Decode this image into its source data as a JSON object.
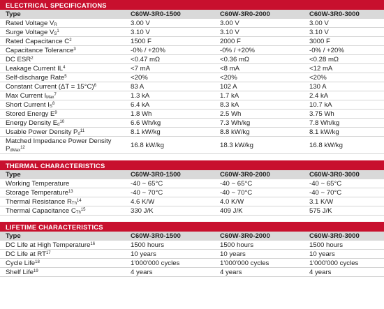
{
  "sections": [
    {
      "title": "ELECTRICAL SPECIFICATIONS",
      "header": [
        "Type",
        "C60W-3R0-1500",
        "C60W-3R0-2000",
        "C60W-3R0-3000"
      ],
      "rows": [
        {
          "label": "Rated Voltage V",
          "sub": "R",
          "values": [
            "3.00 V",
            "3.00 V",
            "3.00 V"
          ]
        },
        {
          "label": "Surge Voltage V",
          "sub": "S",
          "note": "1",
          "values": [
            "3.10 V",
            "3.10 V",
            "3.10 V"
          ]
        },
        {
          "label": "Rated Capacitance C",
          "note": "2",
          "values": [
            "1500 F",
            "2000 F",
            "3000 F"
          ]
        },
        {
          "label": "Capacitance Tolerance",
          "note": "3",
          "values": [
            "-0% / +20%",
            "-0% / +20%",
            "-0% / +20%"
          ]
        },
        {
          "label": "DC ESR",
          "note": "2",
          "values": [
            "<0.47 mΩ",
            "<0.36 mΩ",
            "<0.28 mΩ"
          ]
        },
        {
          "label": "Leakage Current IL",
          "note": "4",
          "values": [
            "<7 mA",
            "<8 mA",
            "<12 mA"
          ]
        },
        {
          "label": "Self-discharge Rate",
          "note": "5",
          "values": [
            "<20%",
            "<20%",
            "<20%"
          ]
        },
        {
          "label": "Constant Current (ΔT = 15°C)",
          "note": "6",
          "values": [
            "83 A",
            "102 A",
            "130 A"
          ]
        },
        {
          "label": "Max Current I",
          "sub": "Max",
          "note": "7",
          "values": [
            "1.3 kA",
            "1.7 kA",
            "2.4 kA"
          ]
        },
        {
          "label": "Short Current I",
          "sub": "S",
          "note": "8",
          "values": [
            "6.4 kA",
            "8.3 kA",
            "10.7 kA"
          ]
        },
        {
          "label": "Stored Energy E",
          "note": "9",
          "values": [
            "1.8 Wh",
            "2.5 Wh",
            "3.75 Wh"
          ]
        },
        {
          "label": "Energy Density E",
          "sub": "d",
          "note": "10",
          "values": [
            "6.6 Wh/kg",
            "7.3 Wh/kg",
            "7.8 Wh/kg"
          ]
        },
        {
          "label": "Usable Power Density P",
          "sub": "d",
          "note": "11",
          "values": [
            "8.1 kW/kg",
            "8.8 kW/kg",
            "8.1 kW/kg"
          ]
        },
        {
          "label": "Matched Impedance Power Density P",
          "sub": "dMax",
          "note": "12",
          "values": [
            "16.8 kW/kg",
            "18.3 kW/kg",
            "16.8 kW/kg"
          ]
        }
      ]
    },
    {
      "title": "THERMAL CHARACTERISTICS",
      "header": [
        "Type",
        "C60W-3R0-1500",
        "C60W-3R0-2000",
        "C60W-3R0-3000"
      ],
      "rows": [
        {
          "label": "Working Temperature",
          "values": [
            "-40 ~ 65°C",
            "-40 ~ 65°C",
            "-40 ~ 65°C"
          ]
        },
        {
          "label": "Storage Temperature",
          "note": "13",
          "values": [
            "-40 ~ 70°C",
            "-40 ~ 70°C",
            "-40 ~ 70°C"
          ]
        },
        {
          "label": "Thermal Resistance R",
          "sub": "Th",
          "note": "14",
          "values": [
            "4.6 K/W",
            "4.0 K/W",
            "3.1 K/W"
          ]
        },
        {
          "label": "Thermal Capacitance C",
          "sub": "Th",
          "note": "15",
          "values": [
            "330 J/K",
            "409 J/K",
            "575 J/K"
          ]
        }
      ]
    },
    {
      "title": "LIFETIME CHARACTERISTICS",
      "header": [
        "Type",
        "C60W-3R0-1500",
        "C60W-3R0-2000",
        "C60W-3R0-3000"
      ],
      "rows": [
        {
          "label": "DC Life at High Temperature",
          "note": "16",
          "values": [
            "1500 hours",
            "1500 hours",
            "1500 hours"
          ]
        },
        {
          "label": "DC Life at RT",
          "note": "17",
          "values": [
            "10 years",
            "10 years",
            "10 years"
          ]
        },
        {
          "label": "Cycle Life",
          "note": "18",
          "values": [
            "1'000'000 cycles",
            "1'000'000 cycles",
            "1'000'000 cycles"
          ]
        },
        {
          "label": "Shelf Life",
          "note": "19",
          "values": [
            "4 years",
            "4 years",
            "4 years"
          ]
        }
      ]
    }
  ]
}
